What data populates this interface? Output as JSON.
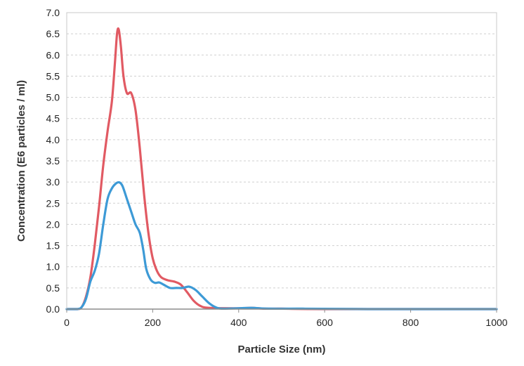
{
  "chart_data": {
    "type": "line",
    "title": "",
    "xlabel": "Particle Size (nm)",
    "ylabel": "Concentration (E6 particles / ml)",
    "xlim": [
      0,
      1000
    ],
    "ylim": [
      0,
      7.0
    ],
    "x_ticks": [
      "0",
      "200",
      "400",
      "600",
      "800",
      "1000"
    ],
    "y_ticks": [
      "0.0",
      "0.5",
      "1.0",
      "1.5",
      "2.0",
      "2.5",
      "3.0",
      "3.5",
      "4.0",
      "4.5",
      "5.0",
      "5.5",
      "6.0",
      "6.5",
      "7.0"
    ],
    "grid": "horizontal dashed",
    "legend": "none",
    "series": [
      {
        "color": "#e15a63",
        "points": [
          [
            0,
            0
          ],
          [
            25,
            0
          ],
          [
            35,
            0.05
          ],
          [
            45,
            0.3
          ],
          [
            55,
            0.75
          ],
          [
            65,
            1.5
          ],
          [
            75,
            2.4
          ],
          [
            85,
            3.4
          ],
          [
            95,
            4.2
          ],
          [
            105,
            4.9
          ],
          [
            112,
            5.8
          ],
          [
            117,
            6.5
          ],
          [
            121,
            6.6
          ],
          [
            126,
            6.2
          ],
          [
            132,
            5.5
          ],
          [
            140,
            5.1
          ],
          [
            150,
            5.1
          ],
          [
            160,
            4.7
          ],
          [
            170,
            3.8
          ],
          [
            180,
            2.7
          ],
          [
            190,
            1.8
          ],
          [
            200,
            1.2
          ],
          [
            210,
            0.9
          ],
          [
            220,
            0.75
          ],
          [
            235,
            0.68
          ],
          [
            250,
            0.65
          ],
          [
            265,
            0.58
          ],
          [
            280,
            0.4
          ],
          [
            295,
            0.2
          ],
          [
            310,
            0.08
          ],
          [
            330,
            0.03
          ],
          [
            400,
            0.02
          ],
          [
            430,
            0.03
          ],
          [
            460,
            0.01
          ],
          [
            500,
            0.01
          ],
          [
            600,
            0
          ],
          [
            1000,
            0
          ]
        ]
      },
      {
        "color": "#3d9ad6",
        "points": [
          [
            0,
            0
          ],
          [
            25,
            0
          ],
          [
            35,
            0.05
          ],
          [
            45,
            0.25
          ],
          [
            55,
            0.65
          ],
          [
            65,
            0.9
          ],
          [
            75,
            1.3
          ],
          [
            85,
            2.0
          ],
          [
            95,
            2.6
          ],
          [
            105,
            2.85
          ],
          [
            115,
            2.97
          ],
          [
            123,
            2.99
          ],
          [
            130,
            2.9
          ],
          [
            140,
            2.6
          ],
          [
            150,
            2.3
          ],
          [
            160,
            2.0
          ],
          [
            170,
            1.8
          ],
          [
            178,
            1.4
          ],
          [
            185,
            0.95
          ],
          [
            195,
            0.7
          ],
          [
            205,
            0.62
          ],
          [
            215,
            0.63
          ],
          [
            225,
            0.58
          ],
          [
            240,
            0.5
          ],
          [
            255,
            0.5
          ],
          [
            270,
            0.5
          ],
          [
            285,
            0.53
          ],
          [
            300,
            0.45
          ],
          [
            315,
            0.3
          ],
          [
            330,
            0.15
          ],
          [
            345,
            0.05
          ],
          [
            360,
            0.01
          ],
          [
            400,
            0.02
          ],
          [
            430,
            0.03
          ],
          [
            470,
            0.01
          ],
          [
            550,
            0.01
          ],
          [
            700,
            0
          ],
          [
            1000,
            0
          ]
        ]
      }
    ]
  }
}
